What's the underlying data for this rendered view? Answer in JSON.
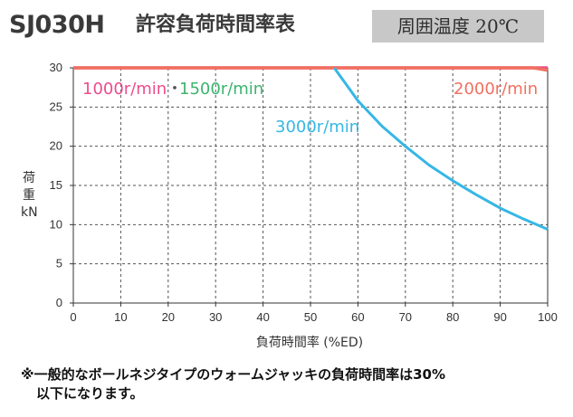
{
  "header": {
    "model": "SJ030H",
    "title": "許容負荷時間率表",
    "temperature": "周囲温度 20℃"
  },
  "note": {
    "line1": "※一般的なボールネジタイプのウォームジャッキの負荷時間率は30%",
    "line2": "以下になります。"
  },
  "colors": {
    "speed_1000": "#ee4c8c",
    "speed_1500": "#3cb46e",
    "speed_2000": "#f07060",
    "speed_3000": "#35b7e5",
    "curve_30": "#ee4c8c"
  },
  "chart_data": {
    "type": "line",
    "xlabel": "負荷時間率 (%ED)",
    "ylabel_lines": [
      "荷",
      "重",
      "kN"
    ],
    "xlim": [
      0,
      100
    ],
    "ylim": [
      0,
      30
    ],
    "x_ticks": [
      "0",
      "10",
      "20",
      "30",
      "40",
      "50",
      "60",
      "70",
      "80",
      "90",
      "100"
    ],
    "y_ticks": [
      "0",
      "5",
      "10",
      "15",
      "20",
      "25",
      "30"
    ],
    "grid": true,
    "labels": {
      "speed_1000": "1000r/min",
      "dot": "・",
      "speed_1500": "1500r/min",
      "speed_2000": "2000r/min",
      "speed_3000": "3000r/min"
    },
    "series": [
      {
        "name": "1000r/min・1500r/min",
        "color": "#ee4c8c",
        "x": [
          0,
          100
        ],
        "y": [
          30,
          30
        ]
      },
      {
        "name": "2000r/min",
        "color": "#f07060",
        "x": [
          0,
          97,
          100
        ],
        "y": [
          30,
          30,
          29.7
        ]
      },
      {
        "name": "3000r/min",
        "color": "#35b7e5",
        "x": [
          55,
          58,
          60,
          63,
          65,
          70,
          75,
          80,
          85,
          90,
          95,
          100
        ],
        "y": [
          30,
          27.5,
          25.8,
          23.9,
          22.6,
          20.0,
          17.6,
          15.6,
          13.8,
          12.1,
          10.7,
          9.4
        ]
      }
    ]
  }
}
